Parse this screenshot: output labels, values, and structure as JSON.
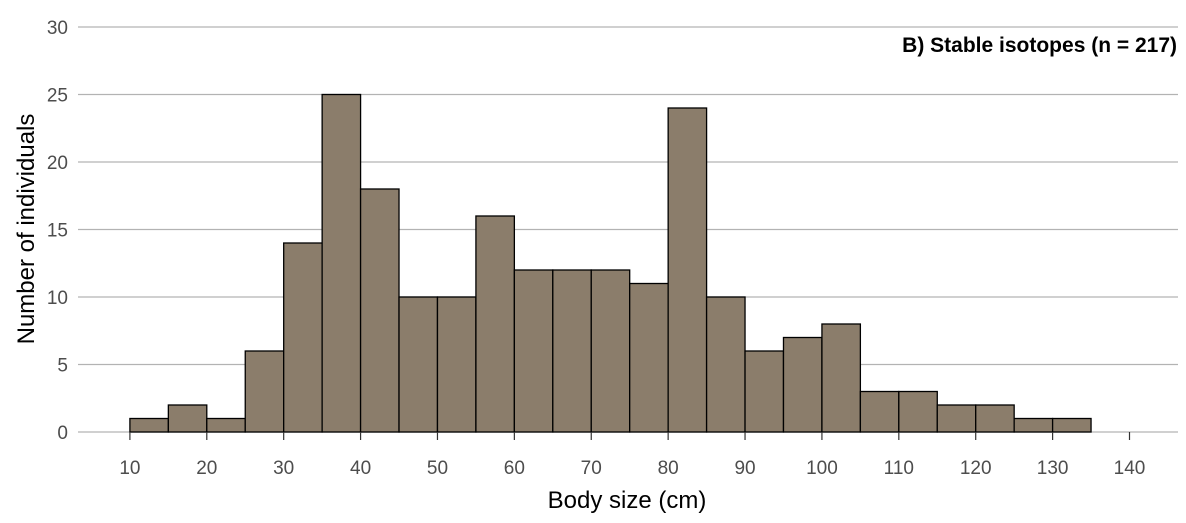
{
  "chart_data": {
    "type": "bar",
    "title": "B) Stable isotopes (n = 217)",
    "xlabel": "Body size (cm)",
    "ylabel": "Number of individuals",
    "bin_width": 5,
    "bin_starts": [
      10,
      15,
      20,
      25,
      30,
      35,
      40,
      45,
      50,
      55,
      60,
      65,
      70,
      75,
      80,
      85,
      90,
      95,
      100,
      105,
      110,
      115,
      120,
      125,
      130,
      135
    ],
    "values": [
      1,
      2,
      1,
      6,
      14,
      25,
      18,
      10,
      10,
      16,
      12,
      12,
      12,
      11,
      24,
      10,
      6,
      7,
      8,
      3,
      3,
      2,
      2,
      1,
      1,
      0
    ],
    "xlim": [
      10,
      140
    ],
    "ylim": [
      0,
      30
    ],
    "x_ticks": [
      10,
      20,
      30,
      40,
      50,
      60,
      70,
      80,
      90,
      100,
      110,
      120,
      130,
      140
    ],
    "y_ticks": [
      0,
      5,
      10,
      15,
      20,
      25,
      30
    ],
    "grid": "horizontal",
    "colors": {
      "bar_fill": "#8b7d6b",
      "bar_stroke": "#000000",
      "grid": "#b3b3b3"
    }
  }
}
